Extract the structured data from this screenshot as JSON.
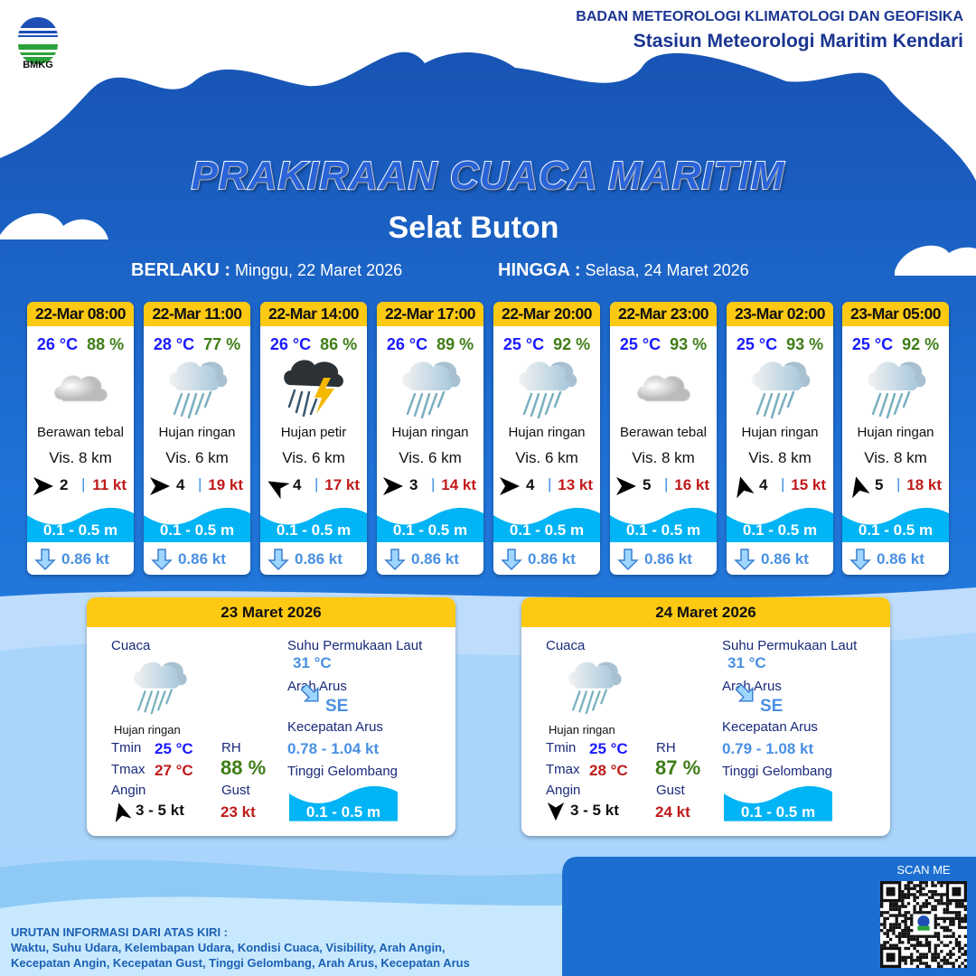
{
  "header": {
    "logo_text": "BMKG",
    "agency": "BADAN METEOROLOGI KLIMATOLOGI DAN GEOFISIKA",
    "station": "Stasiun Meteorologi Maritim Kendari"
  },
  "title": "PRAKIRAAN CUACA MARITIM",
  "area": "Selat Buton",
  "validity": {
    "from_label": "BERLAKU :",
    "from": "Minggu, 22 Maret 2026",
    "to_label": "HINGGA :",
    "to": "Selasa, 24 Maret 2026"
  },
  "colors": {
    "accent_yellow": "#fdc913",
    "temp": "#1a1aff",
    "humidity": "#3f7d17",
    "gust": "#c01a1a",
    "wave": "#00b4f5",
    "current": "#4a90e2"
  },
  "forecasts": [
    {
      "time": "22-Mar 08:00",
      "temp": "26 °C",
      "rh": "88 %",
      "icon": "cloudy",
      "condition": "Berawan tebal",
      "vis": "Vis.  8 km",
      "wind_dir": "E",
      "wind": "2",
      "sep": "|",
      "gust": "11 kt",
      "wave": "0.1 - 0.5 m",
      "current": "0.86 kt"
    },
    {
      "time": "22-Mar 11:00",
      "temp": "28 °C",
      "rh": "77 %",
      "icon": "light-rain",
      "condition": "Hujan ringan",
      "vis": "Vis. 6 km",
      "wind_dir": "E",
      "wind": "4",
      "sep": "|",
      "gust": "19 kt",
      "wave": "0.1 - 0.5 m",
      "current": "0.86 kt"
    },
    {
      "time": "22-Mar 14:00",
      "temp": "26 °C",
      "rh": "86 %",
      "icon": "thunderstorm",
      "condition": "Hujan petir",
      "vis": "Vis. 6 km",
      "wind_dir": "NW",
      "wind": "4",
      "sep": "|",
      "gust": "17 kt",
      "wave": "0.1 - 0.5 m",
      "current": "0.86 kt"
    },
    {
      "time": "22-Mar 17:00",
      "temp": "26 °C",
      "rh": "89 %",
      "icon": "light-rain",
      "condition": "Hujan ringan",
      "vis": "Vis.  6 km",
      "wind_dir": "E",
      "wind": "3",
      "sep": "|",
      "gust": "14 kt",
      "wave": "0.1 - 0.5 m",
      "current": "0.86 kt"
    },
    {
      "time": "22-Mar 20:00",
      "temp": "25 °C",
      "rh": "92 %",
      "icon": "light-rain",
      "condition": "Hujan ringan",
      "vis": "Vis.  6 km",
      "wind_dir": "E",
      "wind": "4",
      "sep": "|",
      "gust": "13 kt",
      "wave": "0.1 - 0.5 m",
      "current": "0.86 kt"
    },
    {
      "time": "22-Mar 23:00",
      "temp": "25 °C",
      "rh": "93 %",
      "icon": "cloudy",
      "condition": "Berawan tebal",
      "vis": "Vis.  8 km",
      "wind_dir": "E",
      "wind": "5",
      "sep": "|",
      "gust": "16 kt",
      "wave": "0.1 - 0.5 m",
      "current": "0.86 kt"
    },
    {
      "time": "23-Mar 02:00",
      "temp": "25 °C",
      "rh": "93 %",
      "icon": "light-rain",
      "condition": "Hujan ringan",
      "vis": "Vis.  8 km",
      "wind_dir": "N",
      "wind": "4",
      "sep": "|",
      "gust": "15 kt",
      "wave": "0.1 - 0.5 m",
      "current": "0.86 kt"
    },
    {
      "time": "23-Mar 05:00",
      "temp": "25 °C",
      "rh": "92 %",
      "icon": "light-rain",
      "condition": "Hujan ringan",
      "vis": "Vis.  8 km",
      "wind_dir": "N",
      "wind": "5",
      "sep": "|",
      "gust": "18 kt",
      "wave": "0.1 - 0.5 m",
      "current": "0.86 kt"
    }
  ],
  "daily": [
    {
      "date": "23 Maret 2026",
      "weather_label": "Cuaca",
      "condition": "Hujan ringan",
      "tmin_label": "Tmin",
      "tmin": "25 °C",
      "tmax_label": "Tmax",
      "tmax": "27 °C",
      "rh_label": "RH",
      "rh": "88 %",
      "wind_label": "Angin",
      "wind_dir": "N",
      "wind": "3  - 5 kt",
      "gust_label": "Gust",
      "gust": "23 kt",
      "sst_label": "Suhu Permukaan Laut",
      "sst": "31 °C",
      "current_dir_label": "Arah Arus",
      "current_dir": "SE",
      "current_speed_label": "Kecepatan Arus",
      "current_speed": "0.78  - 1.04 kt",
      "wave_label": "Tinggi Gelombang",
      "wave": "0.1 - 0.5 m"
    },
    {
      "date": "24 Maret 2026",
      "weather_label": "Cuaca",
      "condition": "Hujan ringan",
      "tmin_label": "Tmin",
      "tmin": "25 °C",
      "tmax_label": "Tmax",
      "tmax": "28 °C",
      "rh_label": "RH",
      "rh": "87 %",
      "wind_label": "Angin",
      "wind_dir": "S",
      "wind": "3  - 5 kt",
      "gust_label": "Gust",
      "gust": "24 kt",
      "sst_label": "Suhu Permukaan Laut",
      "sst": "31 °C",
      "current_dir_label": "Arah Arus",
      "current_dir": "SE",
      "current_speed_label": "Kecepatan Arus",
      "current_speed": "0.79  - 1.08 kt",
      "wave_label": "Tinggi Gelombang",
      "wave": "0.1 - 0.5 m"
    }
  ],
  "footer": {
    "info_title": "URUTAN INFORMASI DARI ATAS KIRI :",
    "info_line1": "Waktu, Suhu Udara, Kelembapan Udara, Kondisi Cuaca, Visibility, Arah Angin,",
    "info_line2": "Kecepatan Angin, Kecepatan Gust, Tinggi Gelombang, Arah Arus, Kecepatan Arus",
    "scan_label": "SCAN ME"
  }
}
